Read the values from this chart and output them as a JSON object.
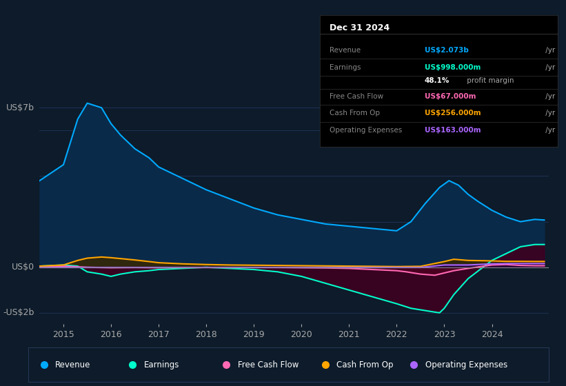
{
  "bg_color": "#0d1b2a",
  "plot_bg_color": "#0d1b2a",
  "grid_color": "#1e3050",
  "ylim": [
    -2500000000.0,
    8000000000.0
  ],
  "xlim": [
    2014.5,
    2025.2
  ],
  "xticks": [
    2015,
    2016,
    2017,
    2018,
    2019,
    2020,
    2021,
    2022,
    2023,
    2024
  ],
  "info_box": {
    "title": "Dec 31 2024",
    "rows": [
      {
        "label": "Revenue",
        "value": "US$2.073b",
        "value_color": "#00aaff"
      },
      {
        "label": "Earnings",
        "value": "US$998.000m",
        "value_color": "#00ffcc"
      },
      {
        "label": "",
        "value": "48.1% profit margin",
        "value_color": "#aaaaaa"
      },
      {
        "label": "Free Cash Flow",
        "value": "US$67.000m",
        "value_color": "#ff69b4"
      },
      {
        "label": "Cash From Op",
        "value": "US$256.000m",
        "value_color": "#ffa500"
      },
      {
        "label": "Operating Expenses",
        "value": "US$163.000m",
        "value_color": "#aa66ff"
      }
    ]
  },
  "legend": [
    {
      "label": "Revenue",
      "color": "#00aaff"
    },
    {
      "label": "Earnings",
      "color": "#00ffcc"
    },
    {
      "label": "Free Cash Flow",
      "color": "#ff69b4"
    },
    {
      "label": "Cash From Op",
      "color": "#ffa500"
    },
    {
      "label": "Operating Expenses",
      "color": "#aa66ff"
    }
  ],
  "revenue": {
    "color": "#00aaff",
    "fill_color": "#0a2a4a",
    "x": [
      2014.5,
      2015.0,
      2015.3,
      2015.5,
      2015.8,
      2016.0,
      2016.2,
      2016.5,
      2016.8,
      2017.0,
      2017.5,
      2018.0,
      2018.5,
      2019.0,
      2019.5,
      2020.0,
      2020.5,
      2021.0,
      2021.5,
      2022.0,
      2022.3,
      2022.6,
      2022.9,
      2023.1,
      2023.3,
      2023.5,
      2023.7,
      2024.0,
      2024.3,
      2024.6,
      2024.9,
      2025.1
    ],
    "y": [
      3800000000.0,
      4500000000.0,
      6500000000.0,
      7200000000.0,
      7000000000.0,
      6300000000.0,
      5800000000.0,
      5200000000.0,
      4800000000.0,
      4400000000.0,
      3900000000.0,
      3400000000.0,
      3000000000.0,
      2600000000.0,
      2300000000.0,
      2100000000.0,
      1900000000.0,
      1800000000.0,
      1700000000.0,
      1600000000.0,
      2000000000.0,
      2800000000.0,
      3500000000.0,
      3800000000.0,
      3600000000.0,
      3200000000.0,
      2900000000.0,
      2500000000.0,
      2200000000.0,
      2000000000.0,
      2100000000.0,
      2073000000.0
    ]
  },
  "earnings": {
    "color": "#00ffcc",
    "fill_color": "#3d0020",
    "x": [
      2014.5,
      2015.0,
      2015.3,
      2015.5,
      2015.8,
      2016.0,
      2016.2,
      2016.5,
      2016.8,
      2017.0,
      2017.5,
      2018.0,
      2018.5,
      2019.0,
      2019.5,
      2020.0,
      2020.5,
      2021.0,
      2021.5,
      2022.0,
      2022.3,
      2022.6,
      2022.9,
      2023.0,
      2023.2,
      2023.5,
      2024.0,
      2024.3,
      2024.6,
      2024.9,
      2025.1
    ],
    "y": [
      50000000.0,
      100000000.0,
      50000000.0,
      -200000000.0,
      -300000000.0,
      -400000000.0,
      -300000000.0,
      -200000000.0,
      -150000000.0,
      -100000000.0,
      -50000000.0,
      0.0,
      -50000000.0,
      -100000000.0,
      -200000000.0,
      -400000000.0,
      -700000000.0,
      -1000000000.0,
      -1300000000.0,
      -1600000000.0,
      -1800000000.0,
      -1900000000.0,
      -2000000000.0,
      -1800000000.0,
      -1200000000.0,
      -500000000.0,
      300000000.0,
      600000000.0,
      900000000.0,
      998000000.0,
      998000000.0
    ]
  },
  "free_cash_flow": {
    "color": "#ff69b4",
    "fill_color": "#5a0020",
    "x": [
      2014.5,
      2015.0,
      2015.5,
      2016.0,
      2016.5,
      2017.0,
      2017.5,
      2018.0,
      2018.5,
      2019.0,
      2019.5,
      2020.0,
      2020.5,
      2021.0,
      2021.5,
      2022.0,
      2022.2,
      2022.5,
      2022.8,
      2023.0,
      2023.2,
      2023.5,
      2024.0,
      2024.3,
      2024.6,
      2024.9,
      2025.1
    ],
    "y": [
      0.0,
      50000000.0,
      0.0,
      -20000000.0,
      -10000000.0,
      -20000000.0,
      -10000000.0,
      -10000000.0,
      -10000000.0,
      -10000000.0,
      -10000000.0,
      -20000000.0,
      -30000000.0,
      -50000000.0,
      -100000000.0,
      -150000000.0,
      -200000000.0,
      -300000000.0,
      -350000000.0,
      -250000000.0,
      -150000000.0,
      -50000000.0,
      100000000.0,
      120000000.0,
      80000000.0,
      67000000.0,
      67000000.0
    ]
  },
  "cash_from_op": {
    "color": "#ffa500",
    "fill_color": "#3a2800",
    "x": [
      2014.5,
      2015.0,
      2015.3,
      2015.5,
      2015.8,
      2016.0,
      2016.2,
      2016.5,
      2016.8,
      2017.0,
      2017.5,
      2018.0,
      2018.5,
      2019.0,
      2019.5,
      2020.0,
      2020.5,
      2021.0,
      2021.5,
      2022.0,
      2022.5,
      2023.0,
      2023.2,
      2023.5,
      2024.0,
      2024.3,
      2024.6,
      2024.9,
      2025.1
    ],
    "y": [
      50000000.0,
      100000000.0,
      300000000.0,
      400000000.0,
      450000000.0,
      420000000.0,
      380000000.0,
      320000000.0,
      250000000.0,
      200000000.0,
      150000000.0,
      120000000.0,
      100000000.0,
      90000000.0,
      80000000.0,
      70000000.0,
      60000000.0,
      50000000.0,
      40000000.0,
      30000000.0,
      40000000.0,
      250000000.0,
      350000000.0,
      300000000.0,
      280000000.0,
      260000000.0,
      260000000.0,
      256000000.0,
      256000000.0
    ]
  },
  "operating_expenses": {
    "color": "#aa66ff",
    "fill_color": "#220044",
    "x": [
      2014.5,
      2015.0,
      2015.5,
      2016.0,
      2016.5,
      2017.0,
      2017.5,
      2018.0,
      2018.5,
      2019.0,
      2019.5,
      2020.0,
      2020.5,
      2021.0,
      2021.5,
      2022.0,
      2022.2,
      2022.5,
      2023.0,
      2023.5,
      2024.0,
      2024.3,
      2024.6,
      2024.9,
      2025.1
    ],
    "y": [
      -10000000.0,
      -10000000.0,
      -10000000.0,
      -10000000.0,
      -10000000.0,
      -10000000.0,
      -10000000.0,
      -10000000.0,
      -10000000.0,
      -10000000.0,
      -10000000.0,
      -10000000.0,
      -10000000.0,
      -10000000.0,
      -10000000.0,
      -10000000.0,
      -10000000.0,
      -10000000.0,
      100000000.0,
      100000000.0,
      150000000.0,
      160000000.0,
      163000000.0,
      163000000.0,
      163000000.0
    ]
  }
}
